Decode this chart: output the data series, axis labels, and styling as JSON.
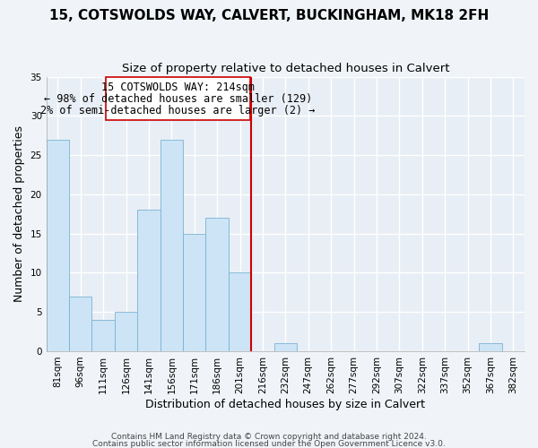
{
  "title": "15, COTSWOLDS WAY, CALVERT, BUCKINGHAM, MK18 2FH",
  "subtitle": "Size of property relative to detached houses in Calvert",
  "xlabel": "Distribution of detached houses by size in Calvert",
  "ylabel": "Number of detached properties",
  "bar_color": "#cce4f5",
  "bar_edge_color": "#7ab3d4",
  "bins": [
    "81sqm",
    "96sqm",
    "111sqm",
    "126sqm",
    "141sqm",
    "156sqm",
    "171sqm",
    "186sqm",
    "201sqm",
    "216sqm",
    "232sqm",
    "247sqm",
    "262sqm",
    "277sqm",
    "292sqm",
    "307sqm",
    "322sqm",
    "337sqm",
    "352sqm",
    "367sqm",
    "382sqm"
  ],
  "values": [
    27,
    7,
    4,
    5,
    18,
    27,
    15,
    17,
    10,
    0,
    1,
    0,
    0,
    0,
    0,
    0,
    0,
    0,
    0,
    1,
    0
  ],
  "property_line_color": "#cc0000",
  "annotation_title": "15 COTSWOLDS WAY: 214sqm",
  "annotation_line1": "← 98% of detached houses are smaller (129)",
  "annotation_line2": "2% of semi-detached houses are larger (2) →",
  "ylim": [
    0,
    35
  ],
  "yticks": [
    0,
    5,
    10,
    15,
    20,
    25,
    30,
    35
  ],
  "footer1": "Contains HM Land Registry data © Crown copyright and database right 2024.",
  "footer2": "Contains public sector information licensed under the Open Government Licence v3.0.",
  "background_color": "#f0f4f8",
  "plot_bg_color": "#e8eef5",
  "grid_color": "#ffffff",
  "title_fontsize": 11,
  "subtitle_fontsize": 9.5,
  "axis_label_fontsize": 9,
  "tick_fontsize": 7.5,
  "annotation_fontsize": 8.5,
  "footer_fontsize": 6.5
}
